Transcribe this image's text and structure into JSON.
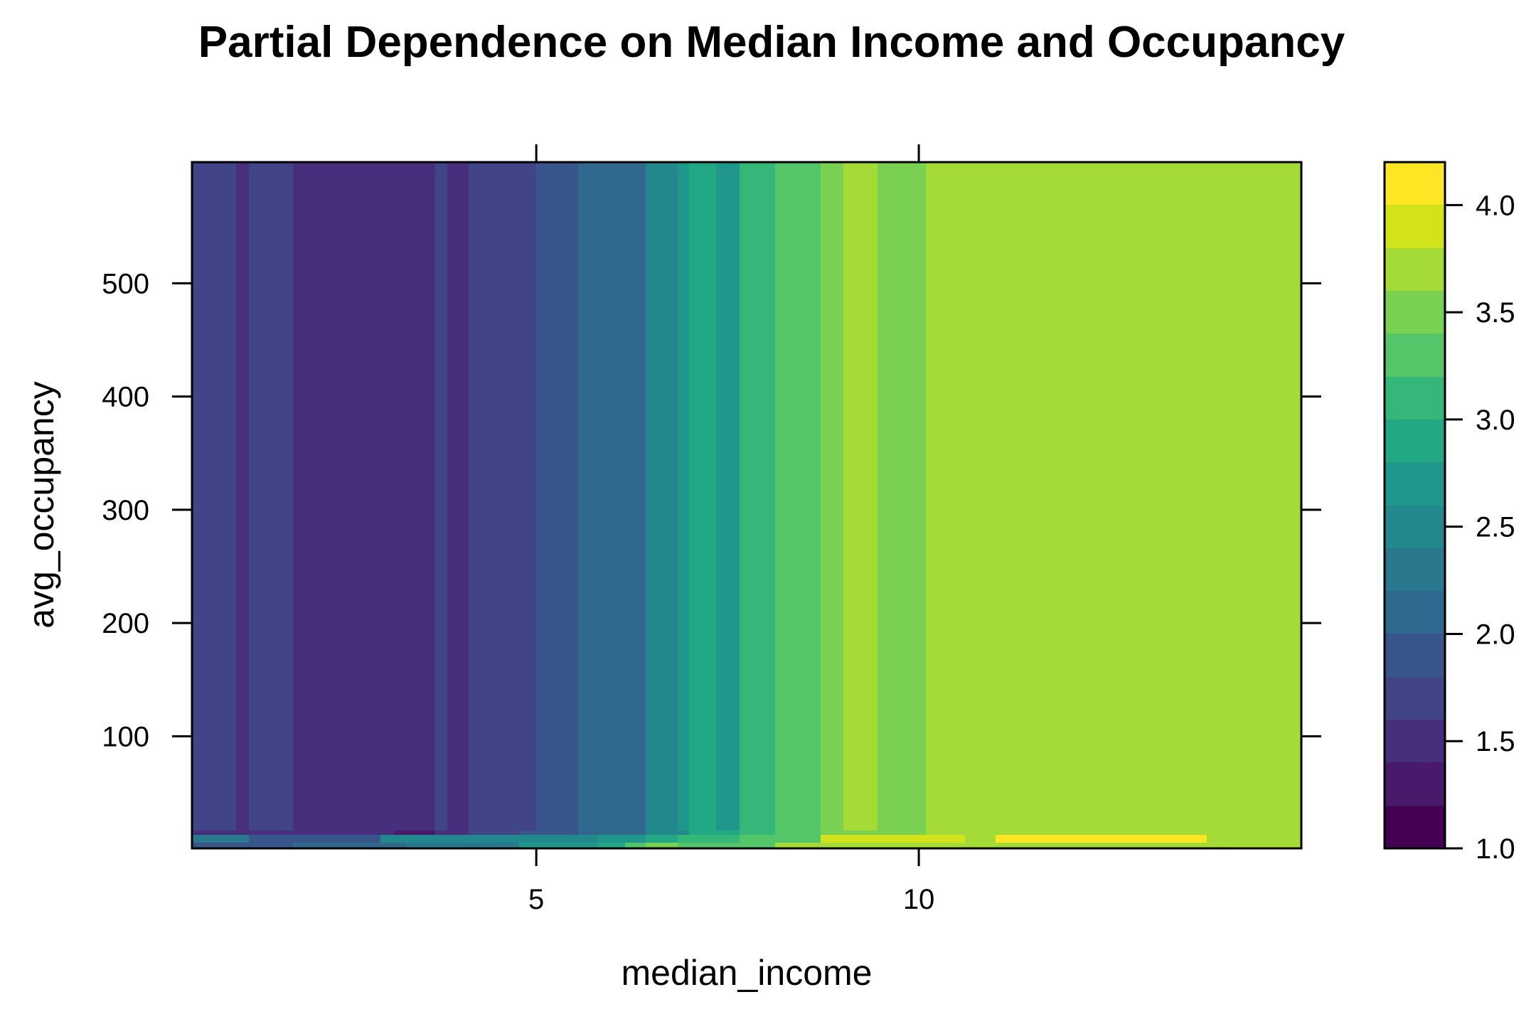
{
  "chart_data": {
    "type": "heatmap",
    "title": "Partial Dependence on Median Income and Occupancy",
    "xlabel": "median_income",
    "ylabel": "avg_occupancy",
    "xlim": [
      0.5,
      15.0
    ],
    "ylim": [
      1,
      607
    ],
    "x_ticks": [
      5,
      10
    ],
    "x_tick_labels": [
      "5",
      "10"
    ],
    "y_ticks": [
      100,
      200,
      300,
      400,
      500
    ],
    "y_tick_labels": [
      "100",
      "200",
      "300",
      "400",
      "500"
    ],
    "grid": false,
    "x_breaks": [
      0.5,
      1.08,
      1.24,
      1.82,
      1.97,
      3.14,
      3.68,
      3.84,
      4.12,
      5.0,
      5.55,
      6.43,
      6.85,
      7.0,
      7.35,
      7.66,
      8.12,
      8.72,
      9.01,
      9.46,
      10.09,
      15.0
    ],
    "top_values": [
      1.66,
      1.45,
      1.66,
      1.45,
      1.55,
      1.55,
      1.66,
      1.45,
      1.75,
      1.92,
      2.16,
      2.42,
      2.65,
      2.88,
      2.72,
      3.05,
      3.22,
      3.42,
      3.72,
      3.42,
      3.72
    ],
    "bottom_strips": [
      {
        "y_range": [
          1,
          6
        ],
        "segments": [
          {
            "x": [
              0.5,
              1.24
            ],
            "value": 1.8
          },
          {
            "x": [
              1.24,
              1.82
            ],
            "value": 1.92
          },
          {
            "x": [
              1.82,
              2.96
            ],
            "value": 2.0
          },
          {
            "x": [
              2.96,
              3.3
            ],
            "value": 2.1
          },
          {
            "x": [
              3.3,
              4.78
            ],
            "value": 2.25
          },
          {
            "x": [
              4.78,
              5.8
            ],
            "value": 2.7
          },
          {
            "x": [
              5.8,
              6.16
            ],
            "value": 2.95
          },
          {
            "x": [
              6.16,
              6.43
            ],
            "value": 3.25
          },
          {
            "x": [
              6.43,
              6.85
            ],
            "value": 3.45
          },
          {
            "x": [
              6.85,
              8.12
            ],
            "value": 3.35
          },
          {
            "x": [
              8.12,
              15.0
            ],
            "value": 3.75
          }
        ]
      },
      {
        "y_range": [
          6,
          13
        ],
        "segments": [
          {
            "x": [
              0.5,
              1.24
            ],
            "value": 2.25
          },
          {
            "x": [
              1.24,
              2.96
            ],
            "value": 1.8
          },
          {
            "x": [
              2.96,
              3.84
            ],
            "value": 2.45
          },
          {
            "x": [
              3.84,
              4.78
            ],
            "value": 2.55
          },
          {
            "x": [
              4.78,
              5.8
            ],
            "value": 2.45
          },
          {
            "x": [
              5.8,
              6.43
            ],
            "value": 2.7
          },
          {
            "x": [
              6.43,
              6.85
            ],
            "value": 2.9
          },
          {
            "x": [
              6.85,
              7.66
            ],
            "value": 3.05
          },
          {
            "x": [
              7.66,
              8.72
            ],
            "value": 3.25
          },
          {
            "x": [
              8.72,
              10.6
            ],
            "value": 3.95
          },
          {
            "x": [
              10.6,
              11.0
            ],
            "value": 3.75
          },
          {
            "x": [
              11.0,
              13.76
            ],
            "value": 4.1
          },
          {
            "x": [
              13.76,
              15.0
            ],
            "value": 3.75
          }
        ]
      },
      {
        "y_range": [
          13,
          17
        ],
        "segments": [
          {
            "x": [
              0.5,
              3.14
            ],
            "value": 1.42
          },
          {
            "x": [
              3.14,
              3.68
            ],
            "value": 1.3
          },
          {
            "x": [
              3.68,
              4.12
            ],
            "value": 1.55
          },
          {
            "x": [
              4.12,
              4.78
            ],
            "value": 1.7
          },
          {
            "x": [
              4.78,
              5.55
            ],
            "value": 1.92
          },
          {
            "x": [
              5.55,
              6.43
            ],
            "value": 2.16
          },
          {
            "x": [
              6.43,
              7.0
            ],
            "value": 2.55
          },
          {
            "x": [
              7.0,
              7.66
            ],
            "value": 2.85
          },
          {
            "x": [
              7.66,
              8.12
            ],
            "value": 3.05
          },
          {
            "x": [
              8.12,
              8.72
            ],
            "value": 3.25
          },
          {
            "x": [
              8.72,
              10.09
            ],
            "value": 3.55
          },
          {
            "x": [
              10.09,
              15.0
            ],
            "value": 3.65
          }
        ]
      }
    ],
    "colorbar": {
      "breaks": [
        1.0,
        1.2,
        1.4,
        1.6,
        1.8,
        2.0,
        2.2,
        2.4,
        2.6,
        2.8,
        3.0,
        3.2,
        3.4,
        3.6,
        3.8,
        4.0,
        4.2
      ],
      "colors": [
        "#440154",
        "#481A6C",
        "#472F7D",
        "#414487",
        "#39568C",
        "#31688E",
        "#2A788E",
        "#23888E",
        "#1F988B",
        "#22A884",
        "#35B779",
        "#54C568",
        "#7AD151",
        "#A5DB36",
        "#D2E21B",
        "#FDE725"
      ],
      "ticks": [
        1.0,
        1.5,
        2.0,
        2.5,
        3.0,
        3.5,
        4.0
      ],
      "tick_labels": [
        "1.0",
        "1.5",
        "2.0",
        "2.5",
        "3.0",
        "3.5",
        "4.0"
      ]
    }
  }
}
